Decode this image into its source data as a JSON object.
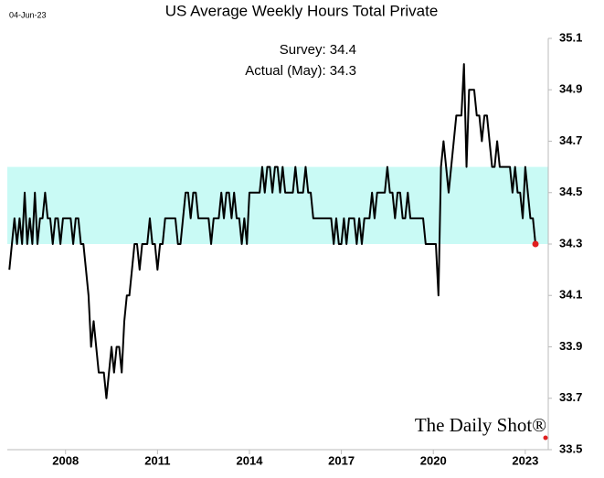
{
  "chart_data": {
    "type": "line",
    "title": "US Average Weekly Hours Total Private",
    "date_label": "04-Jun-23",
    "annotations": [
      "Survey:  34.4",
      "Actual (May):  34.3"
    ],
    "watermark": "The Daily Shot®",
    "band": [
      34.3,
      34.6
    ],
    "band_color": "#c9faf5",
    "last_point_color": "#e02020",
    "xlim": [
      2006.1,
      2023.75
    ],
    "xticks": [
      2008,
      2011,
      2014,
      2017,
      2020,
      2023
    ],
    "ylim": [
      33.5,
      35.1
    ],
    "yticks": [
      33.5,
      33.7,
      33.9,
      34.1,
      34.3,
      34.5,
      34.7,
      34.9,
      35.1
    ],
    "grid": false,
    "series": [
      {
        "color": "#000000",
        "x": [
          2006.167,
          2006.25,
          2006.333,
          2006.417,
          2006.5,
          2006.583,
          2006.667,
          2006.75,
          2006.833,
          2006.917,
          2007,
          2007.083,
          2007.167,
          2007.25,
          2007.333,
          2007.417,
          2007.5,
          2007.583,
          2007.667,
          2007.75,
          2007.833,
          2007.917,
          2008,
          2008.083,
          2008.167,
          2008.25,
          2008.333,
          2008.417,
          2008.5,
          2008.583,
          2008.667,
          2008.75,
          2008.833,
          2008.917,
          2009,
          2009.083,
          2009.167,
          2009.25,
          2009.333,
          2009.417,
          2009.5,
          2009.583,
          2009.667,
          2009.75,
          2009.833,
          2009.917,
          2010,
          2010.083,
          2010.167,
          2010.25,
          2010.333,
          2010.417,
          2010.5,
          2010.583,
          2010.667,
          2010.75,
          2010.833,
          2010.917,
          2011,
          2011.083,
          2011.167,
          2011.25,
          2011.333,
          2011.417,
          2011.5,
          2011.583,
          2011.667,
          2011.75,
          2011.833,
          2011.917,
          2012,
          2012.083,
          2012.167,
          2012.25,
          2012.333,
          2012.417,
          2012.5,
          2012.583,
          2012.667,
          2012.75,
          2012.833,
          2012.917,
          2013,
          2013.083,
          2013.167,
          2013.25,
          2013.333,
          2013.417,
          2013.5,
          2013.583,
          2013.667,
          2013.75,
          2013.833,
          2013.917,
          2014,
          2014.083,
          2014.167,
          2014.25,
          2014.333,
          2014.417,
          2014.5,
          2014.583,
          2014.667,
          2014.75,
          2014.833,
          2014.917,
          2015,
          2015.083,
          2015.167,
          2015.25,
          2015.333,
          2015.417,
          2015.5,
          2015.583,
          2015.667,
          2015.75,
          2015.833,
          2015.917,
          2016,
          2016.083,
          2016.167,
          2016.25,
          2016.333,
          2016.417,
          2016.5,
          2016.583,
          2016.667,
          2016.75,
          2016.833,
          2016.917,
          2017,
          2017.083,
          2017.167,
          2017.25,
          2017.333,
          2017.417,
          2017.5,
          2017.583,
          2017.667,
          2017.75,
          2017.833,
          2017.917,
          2018,
          2018.083,
          2018.167,
          2018.25,
          2018.333,
          2018.417,
          2018.5,
          2018.583,
          2018.667,
          2018.75,
          2018.833,
          2018.917,
          2019,
          2019.083,
          2019.167,
          2019.25,
          2019.333,
          2019.417,
          2019.5,
          2019.583,
          2019.667,
          2019.75,
          2019.833,
          2019.917,
          2020,
          2020.083,
          2020.167,
          2020.25,
          2020.333,
          2020.417,
          2020.5,
          2020.583,
          2020.667,
          2020.75,
          2020.833,
          2020.917,
          2021,
          2021.083,
          2021.167,
          2021.25,
          2021.333,
          2021.417,
          2021.5,
          2021.583,
          2021.667,
          2021.75,
          2021.833,
          2021.917,
          2022,
          2022.083,
          2022.167,
          2022.25,
          2022.333,
          2022.417,
          2022.5,
          2022.583,
          2022.667,
          2022.75,
          2022.833,
          2022.917,
          2023,
          2023.083,
          2023.167,
          2023.25,
          2023.333
        ],
        "values": [
          34.2,
          34.3,
          34.4,
          34.3,
          34.4,
          34.3,
          34.5,
          34.3,
          34.4,
          34.3,
          34.5,
          34.3,
          34.4,
          34.4,
          34.5,
          34.4,
          34.4,
          34.3,
          34.4,
          34.4,
          34.3,
          34.4,
          34.4,
          34.4,
          34.4,
          34.3,
          34.4,
          34.4,
          34.3,
          34.3,
          34.2,
          34.1,
          33.9,
          34.0,
          33.9,
          33.8,
          33.8,
          33.8,
          33.7,
          33.8,
          33.9,
          33.8,
          33.9,
          33.9,
          33.8,
          34.0,
          34.1,
          34.1,
          34.2,
          34.3,
          34.3,
          34.2,
          34.3,
          34.3,
          34.3,
          34.4,
          34.3,
          34.3,
          34.2,
          34.3,
          34.3,
          34.4,
          34.4,
          34.4,
          34.4,
          34.4,
          34.3,
          34.3,
          34.4,
          34.5,
          34.5,
          34.4,
          34.5,
          34.5,
          34.4,
          34.4,
          34.4,
          34.4,
          34.4,
          34.3,
          34.4,
          34.4,
          34.4,
          34.5,
          34.4,
          34.5,
          34.5,
          34.4,
          34.5,
          34.4,
          34.4,
          34.3,
          34.4,
          34.3,
          34.5,
          34.5,
          34.5,
          34.5,
          34.5,
          34.6,
          34.5,
          34.6,
          34.6,
          34.5,
          34.6,
          34.6,
          34.5,
          34.6,
          34.5,
          34.5,
          34.5,
          34.5,
          34.6,
          34.5,
          34.5,
          34.5,
          34.6,
          34.5,
          34.5,
          34.4,
          34.4,
          34.4,
          34.4,
          34.4,
          34.4,
          34.4,
          34.4,
          34.3,
          34.4,
          34.3,
          34.3,
          34.4,
          34.3,
          34.4,
          34.4,
          34.4,
          34.3,
          34.4,
          34.3,
          34.4,
          34.4,
          34.4,
          34.5,
          34.4,
          34.5,
          34.5,
          34.5,
          34.5,
          34.6,
          34.5,
          34.5,
          34.4,
          34.5,
          34.5,
          34.4,
          34.4,
          34.5,
          34.4,
          34.4,
          34.4,
          34.4,
          34.4,
          34.4,
          34.3,
          34.3,
          34.3,
          34.3,
          34.3,
          34.1,
          34.6,
          34.7,
          34.6,
          34.5,
          34.6,
          34.7,
          34.8,
          34.8,
          34.8,
          35.0,
          34.6,
          34.9,
          34.9,
          34.9,
          34.8,
          34.8,
          34.7,
          34.8,
          34.8,
          34.7,
          34.6,
          34.6,
          34.7,
          34.6,
          34.6,
          34.6,
          34.6,
          34.6,
          34.5,
          34.6,
          34.5,
          34.5,
          34.4,
          34.6,
          34.5,
          34.4,
          34.4,
          34.3
        ]
      }
    ]
  }
}
